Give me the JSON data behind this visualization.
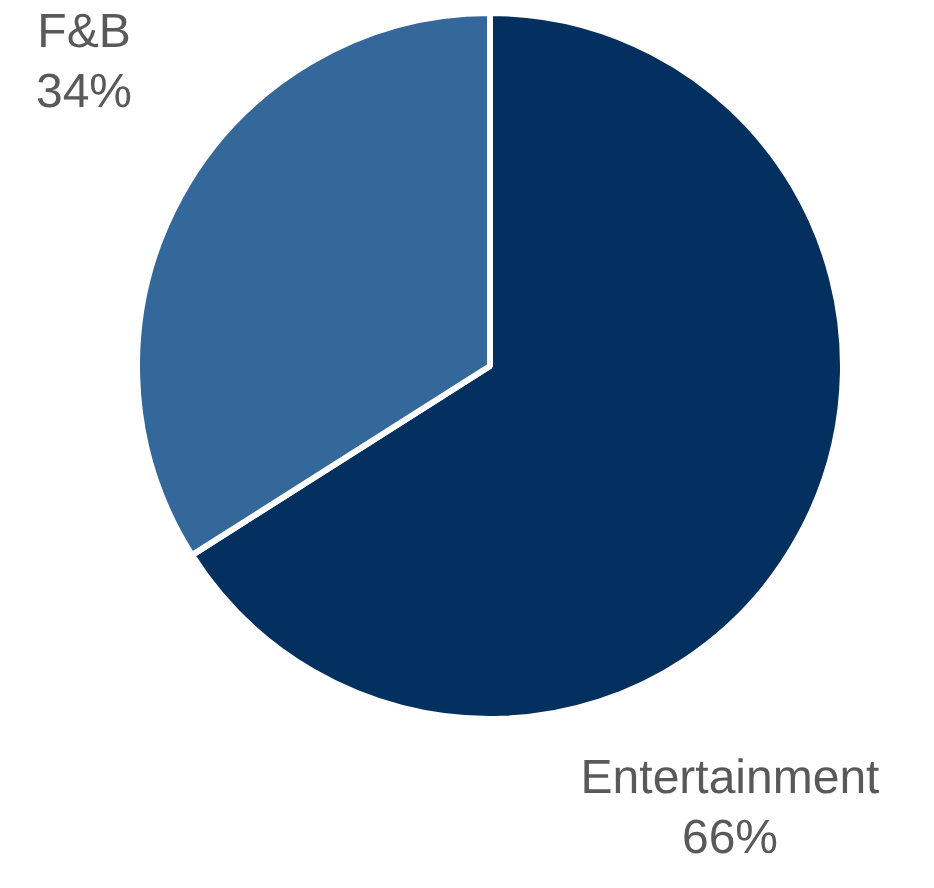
{
  "chart_data": {
    "type": "pie",
    "categories": [
      "Entertainment",
      "F&B"
    ],
    "values": [
      66,
      34
    ],
    "value_labels": [
      "66%",
      "34%"
    ],
    "colors": [
      "#03305f",
      "#34679a"
    ],
    "legend": false
  }
}
